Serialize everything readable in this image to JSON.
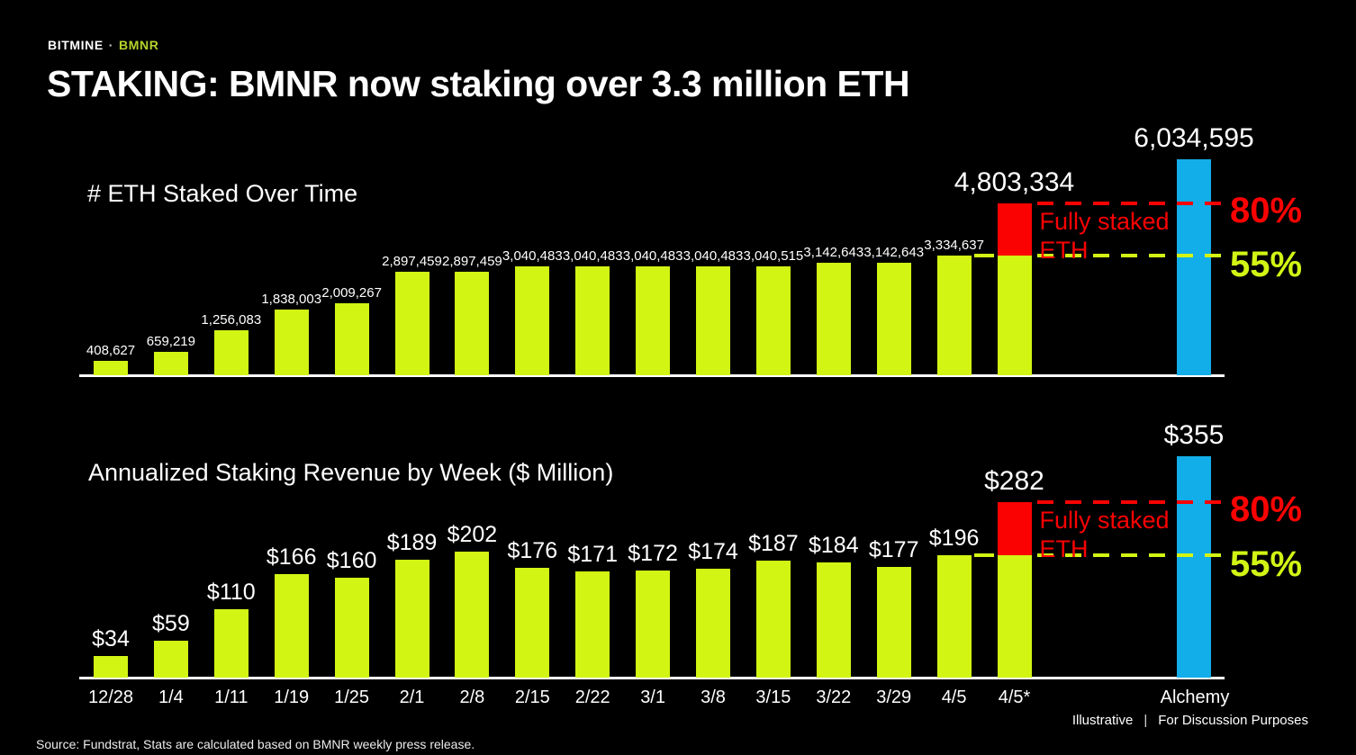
{
  "brand": {
    "company": "BITMINE",
    "separator": "·",
    "ticker": "BMNR"
  },
  "title": "STAKING: BMNR now staking over 3.3 million ETH",
  "colors": {
    "green": "#d2f514",
    "red": "#fa0202",
    "blue": "#12aee9",
    "brand_green": "#b5d32b",
    "white": "#ffffff",
    "background": "#000000"
  },
  "chart_data": [
    {
      "type": "bar",
      "title": "# ETH Staked Over Time",
      "categories": [
        "12/28",
        "1/4",
        "1/11",
        "1/19",
        "1/25",
        "2/1",
        "2/8",
        "2/15",
        "2/22",
        "3/1",
        "3/8",
        "3/15",
        "3/22",
        "3/29",
        "4/5",
        "4/5*",
        "Alchemy"
      ],
      "values": [
        408627,
        659219,
        1256083,
        1838003,
        2009267,
        2897459,
        2897459,
        3040483,
        3040483,
        3040483,
        3040483,
        3040515,
        3142643,
        3142643,
        3334637,
        4803334,
        6034595
      ],
      "value_labels": [
        "408,627",
        "659,219",
        "1,256,083",
        "1,838,003",
        "2,009,267",
        "2,897,459",
        "2,897,459",
        "3,040,483",
        "3,040,483",
        "3,040,483",
        "3,040,483",
        "3,040,515",
        "3,142,643",
        "3,142,643",
        "3,334,637",
        "4,803,334",
        "6,034,595"
      ],
      "highlight": {
        "index": 15,
        "base_value": 3334637,
        "top_color": "red",
        "meaning": "incremental ETH if fully staked"
      },
      "alchemy": {
        "index": 16,
        "color": "blue"
      },
      "reference_lines": [
        {
          "label": "80%",
          "at_value": 4803334,
          "color": "red",
          "style": "dashed"
        },
        {
          "label": "55%",
          "at_value": 3334637,
          "color": "green",
          "style": "dashed"
        }
      ],
      "annotation": {
        "line1": "Fully staked",
        "line2": "ETH",
        "color": "red"
      },
      "ylim": [
        0,
        6034595
      ],
      "grid": false,
      "legend": false
    },
    {
      "type": "bar",
      "title": "Annualized Staking Revenue by Week ($ Million)",
      "categories": [
        "12/28",
        "1/4",
        "1/11",
        "1/19",
        "1/25",
        "2/1",
        "2/8",
        "2/15",
        "2/22",
        "3/1",
        "3/8",
        "3/15",
        "3/22",
        "3/29",
        "4/5",
        "4/5*",
        "Alchemy"
      ],
      "values": [
        34,
        59,
        110,
        166,
        160,
        189,
        202,
        176,
        171,
        172,
        174,
        187,
        184,
        177,
        196,
        282,
        355
      ],
      "value_labels": [
        "$34",
        "$59",
        "$110",
        "$166",
        "$160",
        "$189",
        "$202",
        "$176",
        "$171",
        "$172",
        "$174",
        "$187",
        "$184",
        "$177",
        "$196",
        "$282",
        "$355"
      ],
      "highlight": {
        "index": 15,
        "base_value": 196,
        "top_color": "red",
        "meaning": "incremental revenue if fully staked"
      },
      "alchemy": {
        "index": 16,
        "color": "blue"
      },
      "reference_lines": [
        {
          "label": "80%",
          "at_value": 282,
          "color": "red",
          "style": "dashed"
        },
        {
          "label": "55%",
          "at_value": 196,
          "color": "green",
          "style": "dashed"
        }
      ],
      "annotation": {
        "line1": "Fully staked",
        "line2": "ETH",
        "color": "red"
      },
      "ylim": [
        0,
        355
      ],
      "grid": false,
      "legend": false,
      "x_axis_labels_shown": true
    }
  ],
  "footer": {
    "illustrative": "Illustrative",
    "separator": "|",
    "purpose": "For Discussion Purposes",
    "source": "Source: Fundstrat, Stats are calculated based on BMNR weekly press release."
  }
}
